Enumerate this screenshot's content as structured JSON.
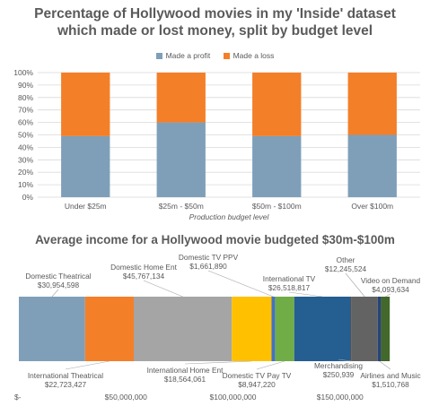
{
  "chart_data": [
    {
      "type": "bar",
      "stacked": true,
      "title_lines": [
        "Percentage of Hollywood movies in my 'Inside' dataset",
        "which made or lost money, split by budget level"
      ],
      "categories": [
        "Under $25m",
        "$25m - $50m",
        "$50m - $100m",
        "Over $100m"
      ],
      "series": [
        {
          "name": "Made a profit",
          "color": "#7f9fb9",
          "values": [
            49,
            60,
            49,
            50
          ]
        },
        {
          "name": "Made a loss",
          "color": "#f37f29",
          "values": [
            51,
            40,
            51,
            50
          ]
        }
      ],
      "xlabel": "Production budget level",
      "ylabel": "",
      "ylim": [
        0,
        100
      ],
      "yticks": [
        "0%",
        "10%",
        "20%",
        "30%",
        "40%",
        "50%",
        "60%",
        "70%",
        "80%",
        "90%",
        "100%"
      ],
      "grid": true,
      "legend": "top"
    },
    {
      "type": "bar",
      "stacked": true,
      "orientation": "horizontal",
      "title": "Average income for a Hollywood movie budgeted $30m-$100m",
      "xlim": [
        0,
        200000000
      ],
      "xticks": [
        {
          "value": 0,
          "label": "$-"
        },
        {
          "value": 50000000,
          "label": "$50,000,000"
        },
        {
          "value": 100000000,
          "label": "$100,000,000"
        },
        {
          "value": 150000000,
          "label": "$150,000,000"
        }
      ],
      "segments": [
        {
          "name": "Domestic Theatrical",
          "value_label": "$30,954,598",
          "value": 30954598,
          "color": "#7f9fb9",
          "label_side": "top"
        },
        {
          "name": "International Theatrical",
          "value_label": "$22,723,427",
          "value": 22723427,
          "color": "#f37f29",
          "label_side": "bottom"
        },
        {
          "name": "Domestic Home Ent",
          "value_label": "$45,767,134",
          "value": 45767134,
          "color": "#a5a5a5",
          "label_side": "top"
        },
        {
          "name": "International Home Ent",
          "value_label": "$18,564,061",
          "value": 18564061,
          "color": "#ffc000",
          "label_side": "bottom"
        },
        {
          "name": "Domestic TV PPV",
          "value_label": "$1,661,890",
          "value": 1661890,
          "color": "#4472c4",
          "label_side": "top"
        },
        {
          "name": "Domestic TV Pay TV",
          "value_label": "$8,947,220",
          "value": 8947220,
          "color": "#70ad47",
          "label_side": "bottom"
        },
        {
          "name": "International TV",
          "value_label": "$26,518,817",
          "value": 26518817,
          "color": "#255e91",
          "label_side": "top"
        },
        {
          "name": "Merchandising",
          "value_label": "$250,939",
          "value": 250939,
          "color": "#9e480e",
          "label_side": "bottom"
        },
        {
          "name": "Other",
          "value_label": "$12,245,524",
          "value": 12245524,
          "color": "#636363",
          "label_side": "top"
        },
        {
          "name": "Airlines and Music",
          "value_label": "$1,510,768",
          "value": 1510768,
          "color": "#264478",
          "label_side": "bottom"
        },
        {
          "name": "Video on Demand",
          "value_label": "$4,093,634",
          "value": 4093634,
          "color": "#43682b",
          "label_side": "top"
        }
      ]
    }
  ]
}
